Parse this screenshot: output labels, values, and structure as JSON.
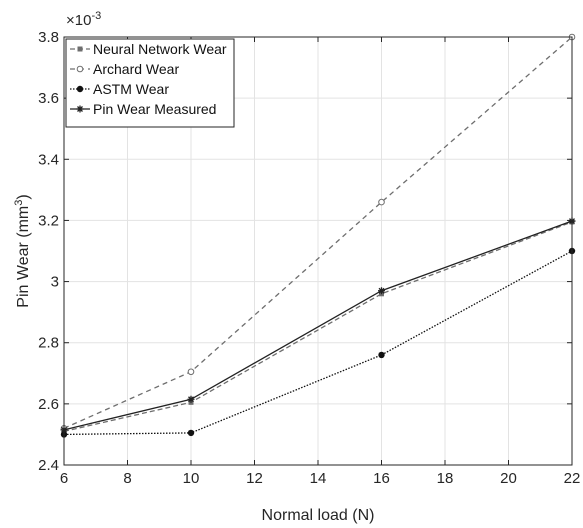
{
  "chart_data": {
    "type": "line",
    "xlabel": "Normal load (N)",
    "ylabel_main": "Pin Wear (mm",
    "ylabel_sup": "3",
    "ylabel_close": ")",
    "y_exponent_base": "×10",
    "y_exponent_power": "-3",
    "xlim": [
      6,
      22
    ],
    "ylim": [
      2.4,
      3.8
    ],
    "xticks": [
      6,
      8,
      10,
      12,
      14,
      16,
      18,
      20,
      22
    ],
    "xtick_labels": [
      "6",
      "8",
      "10",
      "12",
      "14",
      "16",
      "18",
      "20",
      "22"
    ],
    "yticks": [
      2.4,
      2.6,
      2.8,
      3.0,
      3.2,
      3.4,
      3.6,
      3.8
    ],
    "ytick_labels": [
      "2.4",
      "2.6",
      "2.8",
      "3",
      "3.2",
      "3.4",
      "3.6",
      "3.8"
    ],
    "grid": true,
    "legend_position": "top-left",
    "x": [
      6,
      10,
      16,
      22
    ],
    "series": [
      {
        "name": "Neural Network Wear",
        "values": [
          2.51,
          2.605,
          2.96,
          3.195
        ],
        "color": "#6e6e6e",
        "dash": "5,3",
        "marker": "square"
      },
      {
        "name": "Archard Wear",
        "values": [
          2.52,
          2.705,
          3.26,
          3.8
        ],
        "color": "#6e6e6e",
        "dash": "5,4",
        "marker": "circle-open"
      },
      {
        "name": "ASTM Wear",
        "values": [
          2.5,
          2.505,
          2.76,
          3.1
        ],
        "color": "#111111",
        "dash": "1.5,1.5",
        "marker": "dot"
      },
      {
        "name": "Pin Wear Measured",
        "values": [
          2.515,
          2.615,
          2.97,
          3.198
        ],
        "color": "#222222",
        "dash": "",
        "marker": "star"
      }
    ]
  }
}
